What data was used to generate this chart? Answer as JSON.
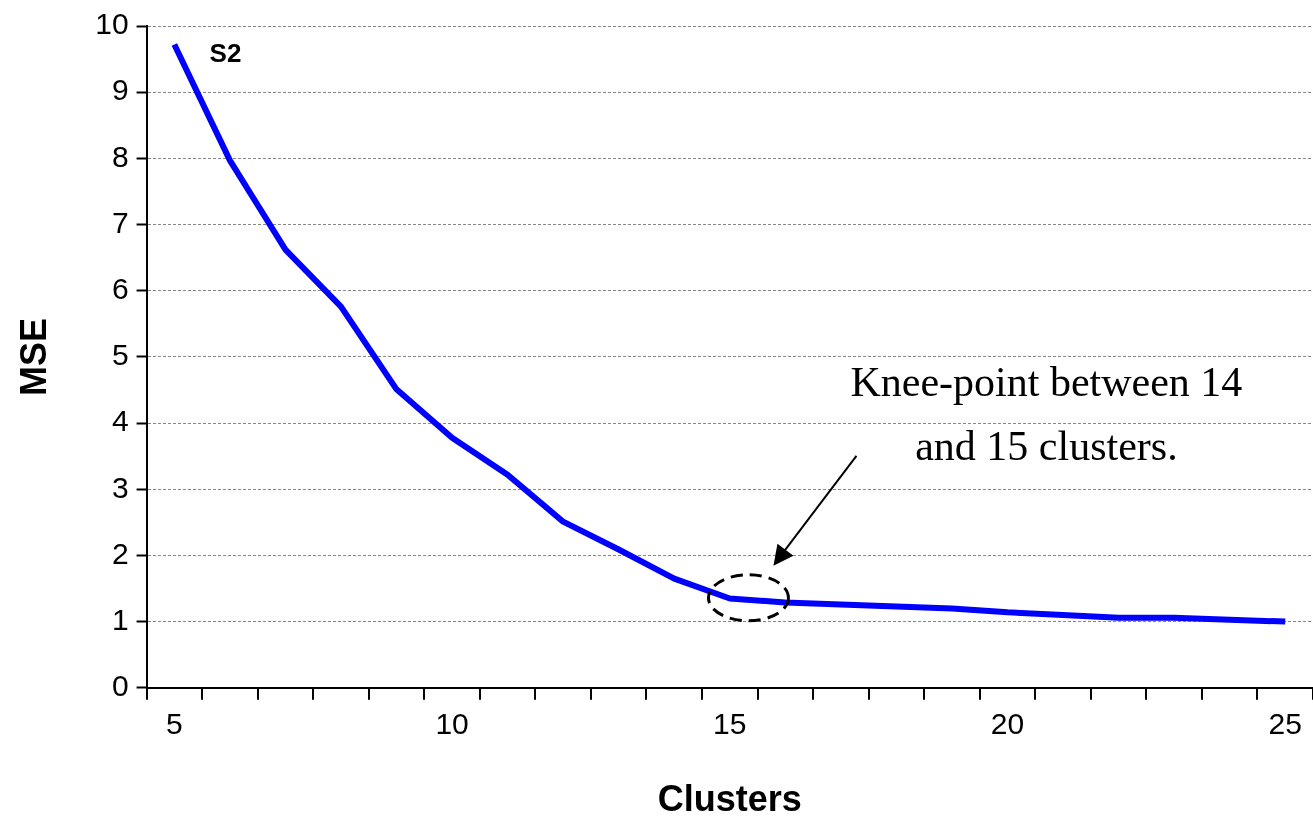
{
  "chart_data": {
    "type": "line",
    "categories": [
      "5",
      null,
      null,
      null,
      null,
      "10",
      null,
      null,
      null,
      null,
      "15",
      null,
      null,
      null,
      null,
      "20",
      null,
      null,
      null,
      null,
      "25"
    ],
    "series": [
      {
        "color": "#0000ff",
        "values": [
          9.72,
          7.97,
          6.62,
          5.76,
          4.51,
          3.78,
          3.22,
          2.51,
          2.09,
          1.65,
          1.35,
          1.29,
          1.26,
          1.23,
          1.2,
          1.14,
          1.1,
          1.06,
          1.06,
          1.03,
          1.0
        ]
      }
    ],
    "xlabel": "Clusters",
    "ylabel": "MSE",
    "ylim": [
      0,
      10
    ],
    "yticks": [
      0,
      1,
      2,
      3,
      4,
      5,
      6,
      7,
      8,
      9,
      10
    ],
    "grid": "y",
    "legend": false,
    "marker": "none",
    "line_style": "solid",
    "annotations": [
      "S2",
      "Knee-point between 14 and 15 clusters."
    ]
  }
}
